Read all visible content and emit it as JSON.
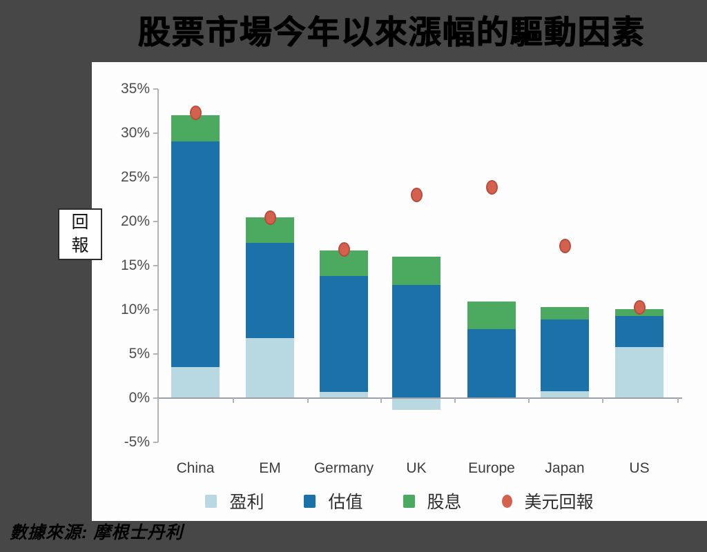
{
  "page": {
    "title": "股票市場今年以來漲幅的驅動因素",
    "source": "數據來源: 摩根士丹利",
    "background_color": "#474747"
  },
  "y_axis_box_label": "回報",
  "chart_data": {
    "type": "bar",
    "subtype": "stacked-bars-with-point-overlay",
    "title": "股票市場今年以來漲幅的驅動因素",
    "ylabel": "回報",
    "categories": [
      "China",
      "EM",
      "Germany",
      "UK",
      "Europe",
      "Japan",
      "US"
    ],
    "series": [
      {
        "name": "盈利",
        "kind": "bar",
        "color": "#b9d9e2",
        "values": [
          3.5,
          6.8,
          0.7,
          -1.3,
          0,
          0.8,
          5.8
        ]
      },
      {
        "name": "估值",
        "kind": "bar",
        "color": "#1b72a8",
        "values": [
          25.6,
          10.8,
          13.1,
          12.8,
          7.8,
          8.1,
          3.5
        ]
      },
      {
        "name": "股息",
        "kind": "bar",
        "color": "#4caa60",
        "values": [
          2.9,
          2.9,
          2.9,
          3.2,
          3.1,
          1.4,
          0.8
        ]
      },
      {
        "name": "美元回報",
        "kind": "point",
        "color": "#d4614e",
        "values": [
          32.3,
          20.4,
          16.8,
          23.0,
          23.9,
          17.2,
          10.3
        ]
      }
    ],
    "bar_totals_local_currency": [
      32.0,
      20.5,
      16.7,
      16.0,
      10.9,
      10.3,
      10.1
    ],
    "ylim": [
      -5,
      35
    ],
    "ytick_step": 5,
    "ytick_format": "percent",
    "grid": false,
    "legend_position": "bottom"
  }
}
